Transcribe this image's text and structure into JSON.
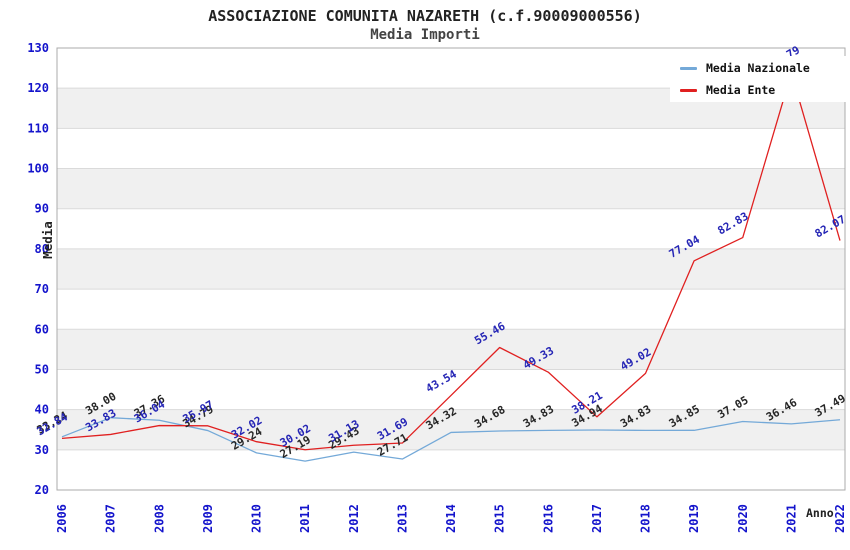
{
  "header": {
    "title": "ASSOCIAZIONE COMUNITA NAZARETH (c.f.90009000556)",
    "subtitle": "Media Importi"
  },
  "axes": {
    "y_label": "Media",
    "x_label": "Anno"
  },
  "style": {
    "band_color": "#f0f0f0",
    "grid_color": "#dadada",
    "border_color": "#ababab",
    "tick_label_color": "#1414cc"
  },
  "chart_data": {
    "type": "line",
    "title": "ASSOCIAZIONE COMUNITA NAZARETH (c.f.90009000556)",
    "subtitle": "Media Importi",
    "xlabel": "Anno",
    "ylabel": "Media",
    "ylim": [
      20,
      130
    ],
    "ytick_step": 10,
    "grid": true,
    "banded_background": true,
    "legend_position": "top-right",
    "categories": [
      "2006",
      "2007",
      "2008",
      "2009",
      "2010",
      "2011",
      "2012",
      "2013",
      "2014",
      "2015",
      "2016",
      "2017",
      "2018",
      "2019",
      "2020",
      "2021",
      "2022"
    ],
    "series": [
      {
        "name": "Media Nazionale",
        "color": "#74a9d8",
        "label_color": "#262626",
        "values": [
          33.24,
          38.0,
          37.36,
          34.79,
          29.24,
          27.19,
          29.43,
          27.71,
          34.32,
          34.68,
          34.83,
          34.94,
          34.83,
          34.85,
          37.05,
          36.46,
          37.49
        ]
      },
      {
        "name": "Media Ente",
        "color": "#e02020",
        "label_color": "#2525b5",
        "values": [
          32.84,
          33.83,
          36.04,
          35.97,
          32.02,
          30.02,
          31.13,
          31.69,
          43.54,
          55.46,
          49.33,
          38.21,
          49.02,
          77.04,
          82.83,
          123.79,
          82.07
        ]
      }
    ]
  }
}
